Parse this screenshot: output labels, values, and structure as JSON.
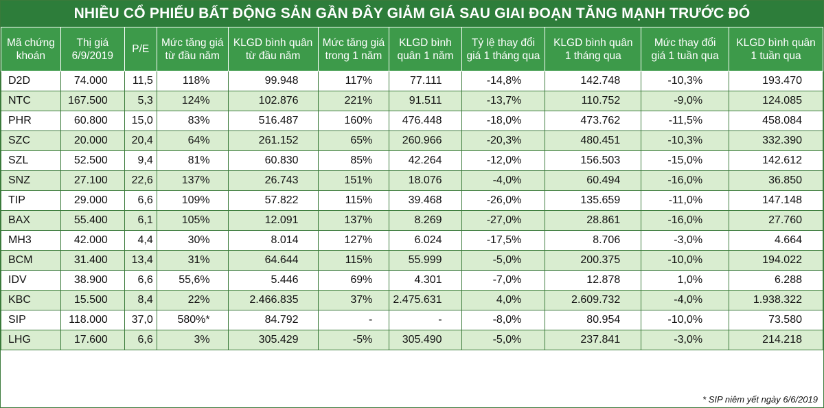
{
  "title": "NHIỀU CỔ PHIẾU BẤT ĐỘNG SẢN GẦN ĐÂY GIẢM GIÁ SAU GIAI ĐOẠN TĂNG MẠNH TRƯỚC ĐÓ",
  "headers": [
    [
      "Mã chứng",
      "khoán"
    ],
    [
      "Thị giá",
      "6/9/2019"
    ],
    [
      "P/E",
      ""
    ],
    [
      "Mức tăng giá",
      "từ đầu năm"
    ],
    [
      "KLGD bình quân",
      "từ đầu năm"
    ],
    [
      "Mức tăng giá",
      "trong 1 năm"
    ],
    [
      "KLGD bình",
      "quân 1 năm"
    ],
    [
      "Tỷ lệ thay đổi",
      "giá 1 tháng qua"
    ],
    [
      "KLGD bình quân",
      "1 tháng qua"
    ],
    [
      "Mức thay đổi",
      "giá 1 tuần qua"
    ],
    [
      "KLGD bình quân",
      "1 tuần qua"
    ]
  ],
  "rows": [
    [
      "D2D",
      "74.000",
      "11,5",
      "118%",
      "99.948",
      "117%",
      "77.111",
      "-14,8%",
      "142.748",
      "-10,3%",
      "193.470"
    ],
    [
      "NTC",
      "167.500",
      "5,3",
      "124%",
      "102.876",
      "221%",
      "91.511",
      "-13,7%",
      "110.752",
      "-9,0%",
      "124.085"
    ],
    [
      "PHR",
      "60.800",
      "15,0",
      "83%",
      "516.487",
      "160%",
      "476.448",
      "-18,0%",
      "473.762",
      "-11,5%",
      "458.084"
    ],
    [
      "SZC",
      "20.000",
      "20,4",
      "64%",
      "261.152",
      "65%",
      "260.966",
      "-20,3%",
      "480.451",
      "-10,3%",
      "332.390"
    ],
    [
      "SZL",
      "52.500",
      "9,4",
      "81%",
      "60.830",
      "85%",
      "42.264",
      "-12,0%",
      "156.503",
      "-15,0%",
      "142.612"
    ],
    [
      "SNZ",
      "27.100",
      "22,6",
      "137%",
      "26.743",
      "151%",
      "18.076",
      "-4,0%",
      "60.494",
      "-16,0%",
      "36.850"
    ],
    [
      "TIP",
      "29.000",
      "6,6",
      "109%",
      "57.822",
      "115%",
      "39.468",
      "-26,0%",
      "135.659",
      "-11,0%",
      "147.148"
    ],
    [
      "BAX",
      "55.400",
      "6,1",
      "105%",
      "12.091",
      "137%",
      "8.269",
      "-27,0%",
      "28.861",
      "-16,0%",
      "27.760"
    ],
    [
      "MH3",
      "42.000",
      "4,4",
      "30%",
      "8.014",
      "127%",
      "6.024",
      "-17,5%",
      "8.706",
      "-3,0%",
      "4.664"
    ],
    [
      "BCM",
      "31.400",
      "13,4",
      "31%",
      "64.644",
      "115%",
      "55.999",
      "-5,0%",
      "200.375",
      "-10,0%",
      "194.022"
    ],
    [
      "IDV",
      "38.900",
      "6,6",
      "55,6%",
      "5.446",
      "69%",
      "4.301",
      "-7,0%",
      "12.878",
      "1,0%",
      "6.288"
    ],
    [
      "KBC",
      "15.500",
      "8,4",
      "22%",
      "2.466.835",
      "37%",
      "2.475.631",
      "4,0%",
      "2.609.732",
      "-4,0%",
      "1.938.322"
    ],
    [
      "SIP",
      "118.000",
      "37,0",
      "580%*",
      "84.792",
      "-",
      "-",
      "-8,0%",
      "80.954",
      "-10,0%",
      "73.580"
    ],
    [
      "LHG",
      "17.600",
      "6,6",
      "3%",
      "305.429",
      "-5%",
      "305.490",
      "-5,0%",
      "237.841",
      "-3,0%",
      "214.218"
    ]
  ],
  "footnote": "* SIP niêm yết ngày 6/6/2019",
  "colors": {
    "title_bg": "#2d7d3a",
    "header_bg": "#3d9a4a",
    "stripe": "#d9edd0",
    "border": "#3a7a3a"
  }
}
